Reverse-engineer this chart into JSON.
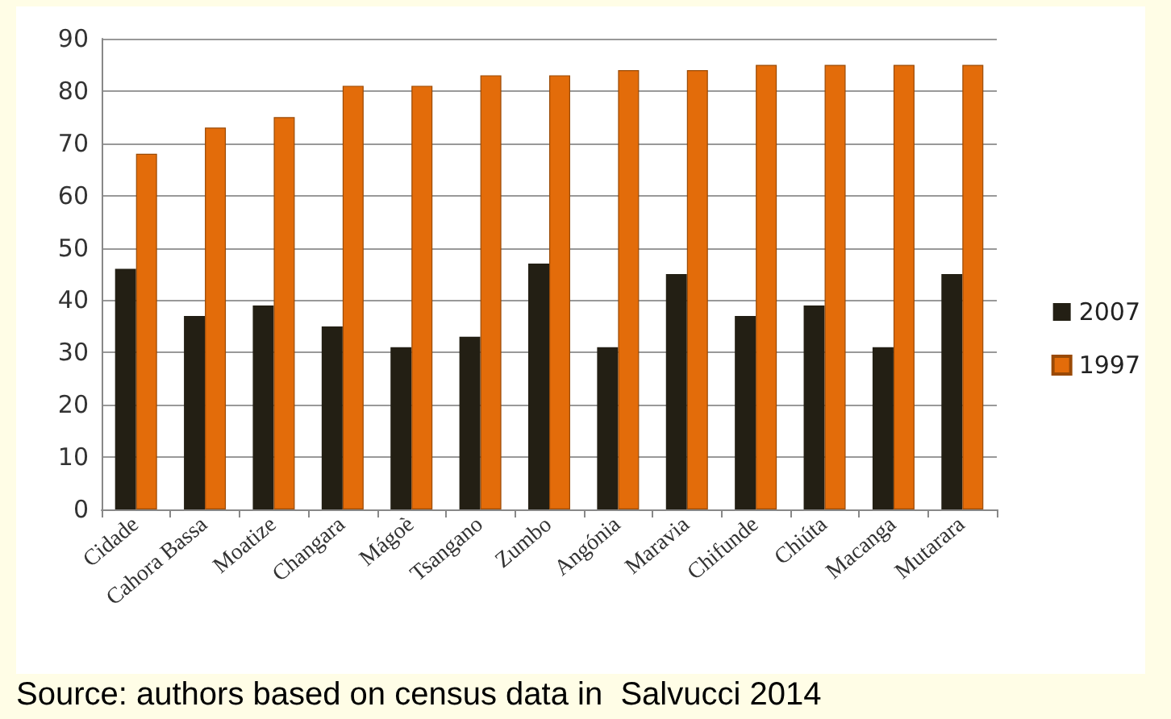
{
  "chart_data": {
    "type": "bar",
    "categories": [
      "Cidade",
      "Cahora Bassa",
      "Moatize",
      "Changara",
      "Mágoè",
      "Tsangano",
      "Zumbo",
      "Angónia",
      "Maravia",
      "Chifunde",
      "Chiúta",
      "Macanga",
      "Mutarara"
    ],
    "series": [
      {
        "name": "2007",
        "color": "#231f14",
        "values": [
          46,
          37,
          39,
          35,
          31,
          33,
          47,
          31,
          45,
          37,
          39,
          31,
          45
        ]
      },
      {
        "name": "1997",
        "color": "#e36c0a",
        "values": [
          68,
          73,
          75,
          81,
          81,
          83,
          83,
          84,
          84,
          85,
          85,
          85,
          85
        ]
      }
    ],
    "ylim": [
      0,
      90
    ],
    "yticks": [
      0,
      10,
      20,
      30,
      40,
      50,
      60,
      70,
      80,
      90
    ],
    "grid": "y",
    "legend": "right",
    "annotations": [
      "Source: authors based on census data in  Salvucci 2014"
    ]
  }
}
